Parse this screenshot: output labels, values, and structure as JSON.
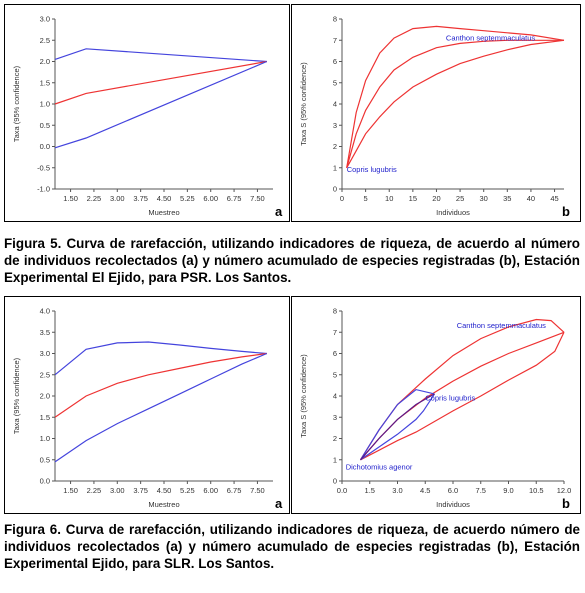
{
  "figures": [
    {
      "caption": "Figura 5. Curva de rarefacción, utilizando indicadores de riqueza, de acuerdo al número de individuos recolectados (a) y número acumulado de especies registradas (b), Estación Experimental El Ejido, para PSR. Los Santos.",
      "chart_data": [
        {
          "type": "line",
          "panel_letter": "a",
          "xlabel": "Muestreo",
          "ylabel": "Taxa (95% confidence)",
          "xlim": [
            1.0,
            8.0
          ],
          "ylim": [
            -1.0,
            3.0
          ],
          "x_ticks": [
            "1.50",
            "2.25",
            "3.00",
            "3.75",
            "4.50",
            "5.25",
            "6.00",
            "6.75",
            "7.50"
          ],
          "y_ticks": [
            "-1.0",
            "-0.5",
            "0.0",
            "0.5",
            "1.0",
            "1.5",
            "2.0",
            "2.5",
            "3.0"
          ],
          "series": [
            {
              "color": "#4444dd",
              "x": [
                1.0,
                2.0,
                7.8
              ],
              "y": [
                2.05,
                2.3,
                2.0
              ]
            },
            {
              "color": "#ee3333",
              "x": [
                1.0,
                2.0,
                7.8
              ],
              "y": [
                1.0,
                1.25,
                2.0
              ]
            },
            {
              "color": "#4444dd",
              "x": [
                1.0,
                2.0,
                7.8
              ],
              "y": [
                -0.03,
                0.2,
                2.0
              ]
            }
          ]
        },
        {
          "type": "line",
          "panel_letter": "b",
          "xlabel": "Individuos",
          "ylabel": "Taxa S (95% confidence)",
          "xlim": [
            0,
            47
          ],
          "ylim": [
            0,
            8
          ],
          "x_ticks": [
            "0",
            "5",
            "10",
            "15",
            "20",
            "25",
            "30",
            "35",
            "40",
            "45"
          ],
          "y_ticks": [
            "0",
            "1",
            "2",
            "3",
            "4",
            "5",
            "6",
            "7",
            "8"
          ],
          "annotations": [
            {
              "text": "Canthon septemmaculatus",
              "x": 22,
              "y": 7.0
            },
            {
              "text": "Copris lugubris",
              "x": 1,
              "y": 0.8
            }
          ],
          "series": [
            {
              "color": "#ee3333",
              "x": [
                1,
                3,
                5,
                8,
                11,
                15,
                20,
                25,
                30,
                35,
                40,
                47
              ],
              "y": [
                1,
                3.6,
                5.1,
                6.4,
                7.1,
                7.55,
                7.65,
                7.55,
                7.45,
                7.35,
                7.25,
                7.0
              ]
            },
            {
              "color": "#ee3333",
              "x": [
                1,
                3,
                5,
                8,
                11,
                15,
                20,
                25,
                30,
                35,
                40,
                47
              ],
              "y": [
                1,
                2.6,
                3.7,
                4.8,
                5.6,
                6.2,
                6.65,
                6.85,
                6.95,
                7.0,
                7.0,
                7.0
              ]
            },
            {
              "color": "#ee3333",
              "x": [
                1,
                3,
                5,
                8,
                11,
                15,
                20,
                25,
                30,
                35,
                40,
                47
              ],
              "y": [
                1,
                1.8,
                2.6,
                3.4,
                4.1,
                4.8,
                5.4,
                5.9,
                6.25,
                6.55,
                6.8,
                7.0
              ]
            }
          ]
        }
      ]
    },
    {
      "caption": "Figura 6. Curva de rarefacción, utilizando indicadores de riqueza, de acuerdo número de individuos recolectados (a) y número acumulado de especies registradas (b), Estación Experimental Ejido, para SLR. Los Santos.",
      "chart_data": [
        {
          "type": "line",
          "panel_letter": "a",
          "xlabel": "Muestreo",
          "ylabel": "Taxa (95% confidence)",
          "xlim": [
            1.0,
            8.0
          ],
          "ylim": [
            0.0,
            4.0
          ],
          "x_ticks": [
            "1.50",
            "2.25",
            "3.00",
            "3.75",
            "4.50",
            "5.25",
            "6.00",
            "6.75",
            "7.50"
          ],
          "y_ticks": [
            "0.0",
            "0.5",
            "1.0",
            "1.5",
            "2.0",
            "2.5",
            "3.0",
            "3.5",
            "4.0"
          ],
          "series": [
            {
              "color": "#4444dd",
              "x": [
                1.0,
                2.0,
                3.0,
                4.0,
                5.0,
                6.0,
                7.0,
                7.8
              ],
              "y": [
                2.5,
                3.1,
                3.25,
                3.27,
                3.2,
                3.12,
                3.05,
                3.0
              ]
            },
            {
              "color": "#ee3333",
              "x": [
                1.0,
                2.0,
                3.0,
                4.0,
                5.0,
                6.0,
                7.0,
                7.8
              ],
              "y": [
                1.5,
                2.0,
                2.3,
                2.5,
                2.65,
                2.8,
                2.92,
                3.0
              ]
            },
            {
              "color": "#4444dd",
              "x": [
                1.0,
                2.0,
                3.0,
                4.0,
                5.0,
                6.0,
                7.0,
                7.8
              ],
              "y": [
                0.45,
                0.95,
                1.35,
                1.7,
                2.05,
                2.4,
                2.75,
                3.0
              ]
            }
          ]
        },
        {
          "type": "line",
          "panel_letter": "b",
          "xlabel": "Individuos",
          "ylabel": "Taxa S (95% confidence)",
          "xlim": [
            0,
            12
          ],
          "ylim": [
            0,
            8
          ],
          "x_ticks": [
            "0.0",
            "1.5",
            "3.0",
            "4.5",
            "6.0",
            "7.5",
            "9.0",
            "10.5",
            "12.0"
          ],
          "y_ticks": [
            "0",
            "1",
            "2",
            "3",
            "4",
            "5",
            "6",
            "7",
            "8"
          ],
          "annotations": [
            {
              "text": "Canthon septemmaculatus",
              "x": 6.2,
              "y": 7.2
            },
            {
              "text": "Copris lugubris",
              "x": 4.5,
              "y": 3.8
            },
            {
              "text": "Dichotomius agenor",
              "x": 0.2,
              "y": 0.55
            }
          ],
          "series": [
            {
              "color": "#ee3333",
              "x": [
                1,
                2,
                3,
                4.5,
                6,
                7.5,
                9,
                10.5,
                11.3,
                12
              ],
              "y": [
                1,
                2.4,
                3.6,
                4.8,
                5.9,
                6.7,
                7.25,
                7.6,
                7.55,
                7.0
              ]
            },
            {
              "color": "#ee3333",
              "x": [
                1,
                2,
                3,
                4.5,
                6,
                7.5,
                9,
                10.5,
                12
              ],
              "y": [
                1,
                2.0,
                2.9,
                3.9,
                4.7,
                5.4,
                6.0,
                6.5,
                7.0
              ]
            },
            {
              "color": "#ee3333",
              "x": [
                1,
                3,
                4,
                5,
                6,
                7.5,
                9,
                10.5,
                11.5,
                12
              ],
              "y": [
                1,
                1.9,
                2.3,
                2.8,
                3.3,
                4.0,
                4.75,
                5.45,
                6.1,
                7.0
              ]
            },
            {
              "color": "#4444dd",
              "x": [
                1,
                2,
                3,
                4,
                5
              ],
              "y": [
                1,
                2.4,
                3.6,
                4.3,
                4.1
              ]
            },
            {
              "color": "#4444dd",
              "x": [
                1,
                2,
                3,
                4,
                4.4,
                5
              ],
              "y": [
                1,
                1.6,
                2.2,
                2.9,
                3.3,
                4.1
              ]
            },
            {
              "color": "#5a1a8a",
              "x": [
                1,
                2,
                3,
                4,
                5
              ],
              "y": [
                1,
                2.0,
                2.9,
                3.6,
                4.1
              ]
            }
          ]
        }
      ]
    }
  ]
}
